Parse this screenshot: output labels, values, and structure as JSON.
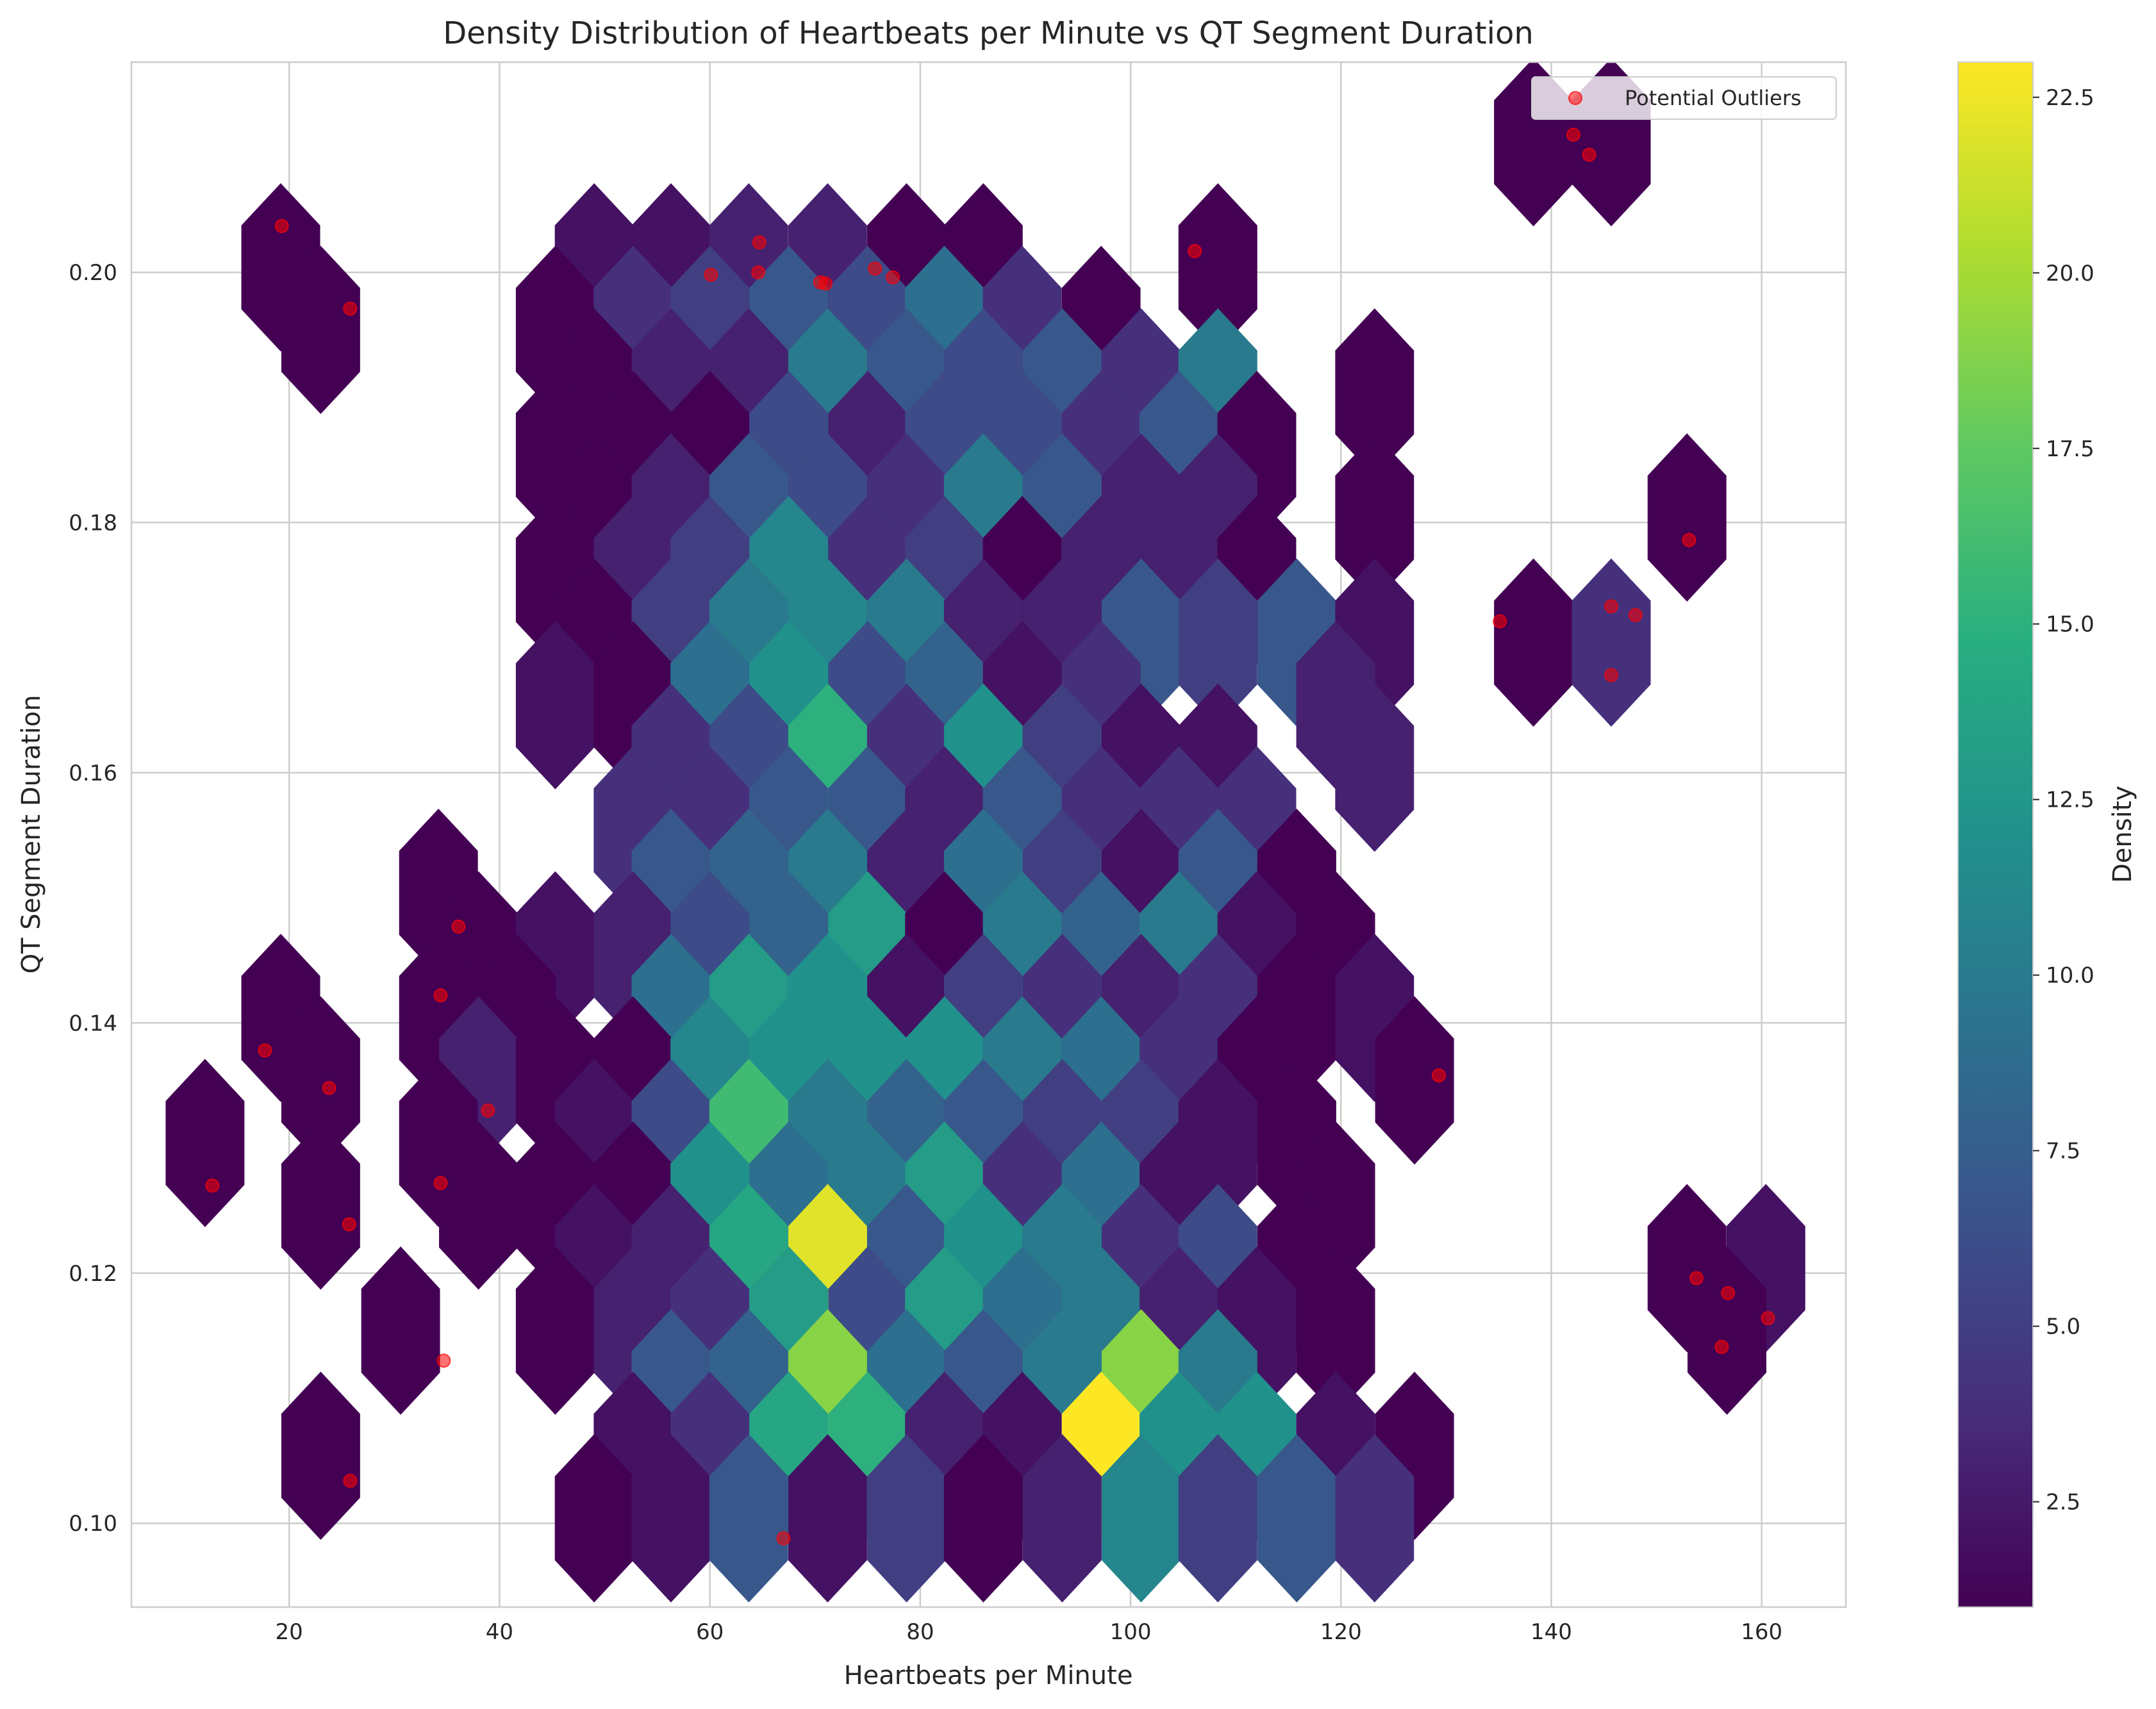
{
  "chart_data": {
    "type": "heatmap",
    "subtype": "hexbin",
    "title": "Density Distribution of Heartbeats per Minute vs QT Segment Duration",
    "xlabel": "Heartbeats per Minute",
    "ylabel": "QT Segment Duration",
    "xlim": [
      5,
      168
    ],
    "ylim": [
      0.0933,
      0.2168
    ],
    "xticks": [
      20,
      40,
      60,
      80,
      100,
      120,
      140,
      160
    ],
    "xtick_labels": [
      "20",
      "40",
      "60",
      "80",
      "100",
      "120",
      "140",
      "160"
    ],
    "yticks": [
      0.1,
      0.12,
      0.14,
      0.16,
      0.18,
      0.2
    ],
    "ytick_labels": [
      "0.10",
      "0.12",
      "0.14",
      "0.16",
      "0.18",
      "0.20"
    ],
    "grid": true,
    "colormap": "viridis",
    "colorbar": {
      "label": "Density",
      "range": [
        1,
        23
      ],
      "ticks": [
        2.5,
        5.0,
        7.5,
        10.0,
        12.5,
        15.0,
        17.5,
        20.0,
        22.5
      ],
      "tick_labels": [
        "2.5",
        "5.0",
        "7.5",
        "10.0",
        "12.5",
        "15.0",
        "17.5",
        "20.0",
        "22.5"
      ]
    },
    "legend": {
      "entries": [
        "Potential Outliers"
      ],
      "position": "top-right"
    },
    "hex_size_x": 3.7,
    "hex_size_y": 0.00667,
    "hexbins": [
      [
        138.3,
        0.2104,
        1
      ],
      [
        145.7,
        0.2104,
        1
      ],
      [
        19.2,
        0.2004,
        1
      ],
      [
        49.0,
        0.2004,
        2
      ],
      [
        56.3,
        0.2004,
        2
      ],
      [
        63.7,
        0.2004,
        3
      ],
      [
        71.2,
        0.2004,
        3
      ],
      [
        78.7,
        0.2004,
        1
      ],
      [
        86.0,
        0.2004,
        1
      ],
      [
        108.3,
        0.2004,
        1
      ],
      [
        23.0,
        0.1954,
        1
      ],
      [
        45.3,
        0.1954,
        1
      ],
      [
        52.7,
        0.1954,
        4
      ],
      [
        60.0,
        0.1954,
        5
      ],
      [
        67.5,
        0.1954,
        7
      ],
      [
        75.0,
        0.1954,
        6
      ],
      [
        82.3,
        0.1954,
        9
      ],
      [
        89.7,
        0.1954,
        4
      ],
      [
        97.2,
        0.1954,
        1
      ],
      [
        49.0,
        0.1904,
        1
      ],
      [
        56.3,
        0.1904,
        3
      ],
      [
        63.7,
        0.1904,
        3
      ],
      [
        71.2,
        0.1904,
        10
      ],
      [
        78.7,
        0.1904,
        7
      ],
      [
        86.0,
        0.1904,
        6
      ],
      [
        93.5,
        0.1904,
        7
      ],
      [
        101.0,
        0.1904,
        4
      ],
      [
        108.3,
        0.1904,
        10
      ],
      [
        123.2,
        0.1904,
        1
      ],
      [
        45.3,
        0.1854,
        1
      ],
      [
        52.7,
        0.1854,
        1
      ],
      [
        60.0,
        0.1854,
        1
      ],
      [
        67.5,
        0.1854,
        6
      ],
      [
        75.0,
        0.1854,
        3
      ],
      [
        82.3,
        0.1854,
        6
      ],
      [
        89.7,
        0.1854,
        6
      ],
      [
        97.2,
        0.1854,
        4
      ],
      [
        104.6,
        0.1854,
        7
      ],
      [
        112.0,
        0.1854,
        1
      ],
      [
        49.0,
        0.1804,
        1
      ],
      [
        56.3,
        0.1804,
        3
      ],
      [
        63.7,
        0.1804,
        7
      ],
      [
        71.2,
        0.1804,
        6
      ],
      [
        78.7,
        0.1804,
        4
      ],
      [
        86.0,
        0.1804,
        10
      ],
      [
        93.5,
        0.1804,
        7
      ],
      [
        101.0,
        0.1804,
        3
      ],
      [
        108.3,
        0.1804,
        3
      ],
      [
        123.2,
        0.1804,
        1
      ],
      [
        152.9,
        0.1804,
        1
      ],
      [
        45.3,
        0.1754,
        1
      ],
      [
        52.7,
        0.1754,
        3
      ],
      [
        60.0,
        0.1754,
        5
      ],
      [
        67.5,
        0.1754,
        11
      ],
      [
        75.0,
        0.1754,
        4
      ],
      [
        82.3,
        0.1754,
        5
      ],
      [
        89.7,
        0.1754,
        1
      ],
      [
        97.2,
        0.1754,
        3
      ],
      [
        104.6,
        0.1754,
        3
      ],
      [
        112.0,
        0.1754,
        1
      ],
      [
        49.0,
        0.1704,
        1
      ],
      [
        56.3,
        0.1704,
        5
      ],
      [
        63.7,
        0.1704,
        10
      ],
      [
        71.2,
        0.1704,
        11
      ],
      [
        78.7,
        0.1704,
        10
      ],
      [
        86.0,
        0.1704,
        3
      ],
      [
        93.5,
        0.1704,
        3
      ],
      [
        101.0,
        0.1704,
        7
      ],
      [
        108.3,
        0.1704,
        5
      ],
      [
        115.8,
        0.1704,
        7
      ],
      [
        123.2,
        0.1704,
        2
      ],
      [
        138.3,
        0.1704,
        1
      ],
      [
        145.7,
        0.1704,
        4
      ],
      [
        45.3,
        0.1654,
        2
      ],
      [
        52.7,
        0.1654,
        1
      ],
      [
        60.0,
        0.1654,
        9
      ],
      [
        67.5,
        0.1654,
        12
      ],
      [
        75.0,
        0.1654,
        6
      ],
      [
        82.3,
        0.1654,
        8
      ],
      [
        89.7,
        0.1654,
        2
      ],
      [
        97.2,
        0.1654,
        4
      ],
      [
        119.5,
        0.1654,
        3
      ],
      [
        56.3,
        0.1604,
        4
      ],
      [
        63.7,
        0.1604,
        6
      ],
      [
        71.2,
        0.1604,
        15
      ],
      [
        78.7,
        0.1604,
        4
      ],
      [
        86.0,
        0.1604,
        12
      ],
      [
        93.5,
        0.1604,
        5
      ],
      [
        101.0,
        0.1604,
        2
      ],
      [
        108.3,
        0.1604,
        2
      ],
      [
        123.2,
        0.1604,
        3
      ],
      [
        52.7,
        0.1554,
        4
      ],
      [
        60.0,
        0.1554,
        4
      ],
      [
        67.5,
        0.1554,
        7
      ],
      [
        75.0,
        0.1554,
        7
      ],
      [
        82.3,
        0.1554,
        3
      ],
      [
        89.7,
        0.1554,
        7
      ],
      [
        97.2,
        0.1554,
        4
      ],
      [
        104.6,
        0.1554,
        4
      ],
      [
        112.0,
        0.1554,
        4
      ],
      [
        34.2,
        0.1504,
        1
      ],
      [
        56.3,
        0.1504,
        7
      ],
      [
        63.7,
        0.1504,
        8
      ],
      [
        71.2,
        0.1504,
        10
      ],
      [
        78.7,
        0.1504,
        3
      ],
      [
        86.0,
        0.1504,
        9
      ],
      [
        93.5,
        0.1504,
        5
      ],
      [
        101.0,
        0.1504,
        2
      ],
      [
        108.3,
        0.1504,
        7
      ],
      [
        115.8,
        0.1504,
        1
      ],
      [
        38.0,
        0.1454,
        1
      ],
      [
        45.3,
        0.1454,
        2
      ],
      [
        52.7,
        0.1454,
        3
      ],
      [
        60.0,
        0.1454,
        6
      ],
      [
        67.5,
        0.1454,
        8
      ],
      [
        75.0,
        0.1454,
        13
      ],
      [
        82.3,
        0.1454,
        1
      ],
      [
        89.7,
        0.1454,
        10
      ],
      [
        97.2,
        0.1454,
        8
      ],
      [
        104.6,
        0.1454,
        10
      ],
      [
        112.0,
        0.1454,
        2
      ],
      [
        119.5,
        0.1454,
        1
      ],
      [
        19.2,
        0.1404,
        1
      ],
      [
        34.2,
        0.1404,
        1
      ],
      [
        41.6,
        0.1404,
        1
      ],
      [
        56.3,
        0.1404,
        9
      ],
      [
        63.7,
        0.1404,
        13
      ],
      [
        71.2,
        0.1404,
        12
      ],
      [
        78.7,
        0.1404,
        2
      ],
      [
        86.0,
        0.1404,
        5
      ],
      [
        93.5,
        0.1404,
        4
      ],
      [
        101.0,
        0.1404,
        3
      ],
      [
        108.3,
        0.1404,
        4
      ],
      [
        115.8,
        0.1404,
        1
      ],
      [
        123.2,
        0.1404,
        2
      ],
      [
        23.0,
        0.1354,
        1
      ],
      [
        38.0,
        0.1354,
        3
      ],
      [
        45.3,
        0.1354,
        1
      ],
      [
        52.7,
        0.1354,
        1
      ],
      [
        60.0,
        0.1354,
        11
      ],
      [
        67.5,
        0.1354,
        12
      ],
      [
        75.0,
        0.1354,
        12
      ],
      [
        82.3,
        0.1354,
        12
      ],
      [
        89.7,
        0.1354,
        10
      ],
      [
        97.2,
        0.1354,
        9
      ],
      [
        104.6,
        0.1354,
        4
      ],
      [
        112.0,
        0.1354,
        1
      ],
      [
        127.0,
        0.1354,
        1
      ],
      [
        12.0,
        0.1304,
        1
      ],
      [
        34.2,
        0.1304,
        1
      ],
      [
        49.0,
        0.1304,
        2
      ],
      [
        56.3,
        0.1304,
        6
      ],
      [
        63.7,
        0.1304,
        16
      ],
      [
        71.2,
        0.1304,
        10
      ],
      [
        78.7,
        0.1304,
        8
      ],
      [
        86.0,
        0.1304,
        7
      ],
      [
        93.5,
        0.1304,
        5
      ],
      [
        101.0,
        0.1304,
        5
      ],
      [
        108.3,
        0.1304,
        2
      ],
      [
        115.8,
        0.1304,
        1
      ],
      [
        23.0,
        0.1254,
        1
      ],
      [
        38.0,
        0.1254,
        1
      ],
      [
        45.3,
        0.1254,
        1
      ],
      [
        52.7,
        0.1254,
        1
      ],
      [
        60.0,
        0.1254,
        12
      ],
      [
        67.5,
        0.1254,
        9
      ],
      [
        75.0,
        0.1254,
        10
      ],
      [
        82.3,
        0.1254,
        13
      ],
      [
        89.7,
        0.1254,
        4
      ],
      [
        97.2,
        0.1254,
        9
      ],
      [
        104.6,
        0.1254,
        2
      ],
      [
        119.5,
        0.1254,
        1
      ],
      [
        49.0,
        0.1204,
        2
      ],
      [
        56.3,
        0.1204,
        3
      ],
      [
        63.7,
        0.1204,
        14
      ],
      [
        71.2,
        0.1204,
        22
      ],
      [
        78.7,
        0.1204,
        7
      ],
      [
        86.0,
        0.1204,
        12
      ],
      [
        93.5,
        0.1204,
        10
      ],
      [
        101.0,
        0.1204,
        4
      ],
      [
        108.3,
        0.1204,
        6
      ],
      [
        115.8,
        0.1204,
        1
      ],
      [
        152.9,
        0.1204,
        1
      ],
      [
        160.4,
        0.1204,
        2
      ],
      [
        30.6,
        0.1154,
        1
      ],
      [
        45.3,
        0.1154,
        1
      ],
      [
        52.7,
        0.1154,
        3
      ],
      [
        60.0,
        0.1154,
        4
      ],
      [
        67.5,
        0.1154,
        13
      ],
      [
        75.0,
        0.1154,
        6
      ],
      [
        82.3,
        0.1154,
        13
      ],
      [
        89.7,
        0.1154,
        9
      ],
      [
        97.2,
        0.1154,
        10
      ],
      [
        104.6,
        0.1154,
        3
      ],
      [
        112.0,
        0.1154,
        2
      ],
      [
        119.5,
        0.1154,
        1
      ],
      [
        156.7,
        0.1154,
        1
      ],
      [
        56.3,
        0.1104,
        7
      ],
      [
        63.7,
        0.1104,
        8
      ],
      [
        71.2,
        0.1104,
        19
      ],
      [
        78.7,
        0.1104,
        9
      ],
      [
        86.0,
        0.1104,
        7
      ],
      [
        93.5,
        0.1104,
        10
      ],
      [
        101.0,
        0.1104,
        19
      ],
      [
        108.3,
        0.1104,
        10
      ],
      [
        23.0,
        0.1054,
        1
      ],
      [
        52.7,
        0.1054,
        2
      ],
      [
        60.0,
        0.1054,
        4
      ],
      [
        67.5,
        0.1054,
        14
      ],
      [
        75.0,
        0.1054,
        15
      ],
      [
        82.3,
        0.1054,
        3
      ],
      [
        89.7,
        0.1054,
        2
      ],
      [
        97.2,
        0.1054,
        23
      ],
      [
        104.6,
        0.1054,
        12
      ],
      [
        112.0,
        0.1054,
        12
      ],
      [
        119.5,
        0.1054,
        2
      ],
      [
        127.0,
        0.1054,
        1
      ],
      [
        49.0,
        0.1004,
        1
      ],
      [
        56.3,
        0.1004,
        2
      ],
      [
        63.7,
        0.1004,
        7
      ],
      [
        71.2,
        0.1004,
        2
      ],
      [
        78.7,
        0.1004,
        5
      ],
      [
        86.0,
        0.1004,
        1
      ],
      [
        93.5,
        0.1004,
        3
      ],
      [
        101.0,
        0.1004,
        11
      ],
      [
        108.3,
        0.1004,
        5
      ],
      [
        115.8,
        0.1004,
        7
      ],
      [
        123.2,
        0.1004,
        4
      ]
    ],
    "outliers": {
      "name": "Potential Outliers",
      "color": "#ff0000",
      "points": [
        [
          19.3,
          0.2037
        ],
        [
          25.8,
          0.1971
        ],
        [
          64.7,
          0.2024
        ],
        [
          64.6,
          0.2
        ],
        [
          60.1,
          0.1998
        ],
        [
          70.5,
          0.1992
        ],
        [
          71.0,
          0.1991
        ],
        [
          75.7,
          0.2003
        ],
        [
          77.4,
          0.1996
        ],
        [
          106.1,
          0.2017
        ],
        [
          142.1,
          0.211
        ],
        [
          143.6,
          0.2094
        ],
        [
          153.1,
          0.1786
        ],
        [
          135.1,
          0.1721
        ],
        [
          145.7,
          0.1733
        ],
        [
          148.0,
          0.1726
        ],
        [
          145.7,
          0.1678
        ],
        [
          36.1,
          0.1477
        ],
        [
          34.4,
          0.1422
        ],
        [
          17.7,
          0.1378
        ],
        [
          23.8,
          0.1348
        ],
        [
          38.9,
          0.133
        ],
        [
          34.4,
          0.1272
        ],
        [
          12.7,
          0.127
        ],
        [
          25.7,
          0.1239
        ],
        [
          129.3,
          0.1358
        ],
        [
          34.7,
          0.113
        ],
        [
          25.8,
          0.1034
        ],
        [
          67.0,
          0.0988
        ],
        [
          153.8,
          0.1196
        ],
        [
          156.8,
          0.1184
        ],
        [
          160.6,
          0.1164
        ],
        [
          156.2,
          0.1141
        ]
      ]
    }
  }
}
